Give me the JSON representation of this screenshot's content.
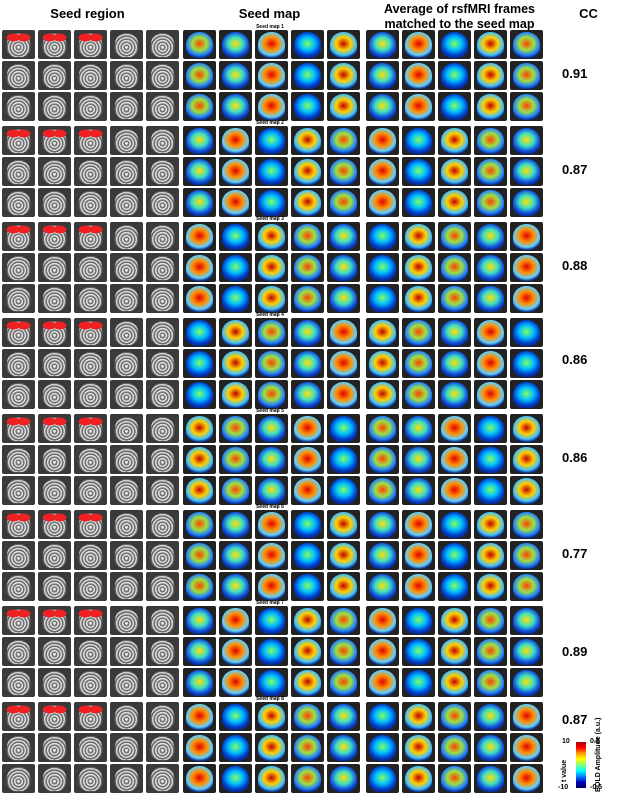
{
  "headers": {
    "seed_region": "Seed region",
    "seed_map": "Seed map",
    "average": "Average of rsfMRI frames matched to the seed map",
    "cc": "CC"
  },
  "rows": [
    {
      "seed_map_label": "Seed map 1",
      "cc": "0.91"
    },
    {
      "seed_map_label": "Seed map 2",
      "cc": "0.87"
    },
    {
      "seed_map_label": "Seed map 3",
      "cc": "0.88"
    },
    {
      "seed_map_label": "Seed map 4",
      "cc": "0.86"
    },
    {
      "seed_map_label": "Seed map 5",
      "cc": "0.86"
    },
    {
      "seed_map_label": "Seed map 6",
      "cc": "0.77"
    },
    {
      "seed_map_label": "Seed map 7",
      "cc": "0.89"
    },
    {
      "seed_map_label": "Seed map 8",
      "cc": "0.87"
    }
  ],
  "colorbar": {
    "top_left": "10",
    "top_right": "0.5",
    "bottom_left": "-10",
    "bottom_right": "-0.5",
    "left_label": "t value",
    "right_label": "BOLD Amplitude (a.u.)",
    "colors": [
      "#b00000",
      "#ff0000",
      "#ffa000",
      "#ffff00",
      "#80ff80",
      "#00ffff",
      "#0080ff",
      "#0000c0"
    ]
  }
}
